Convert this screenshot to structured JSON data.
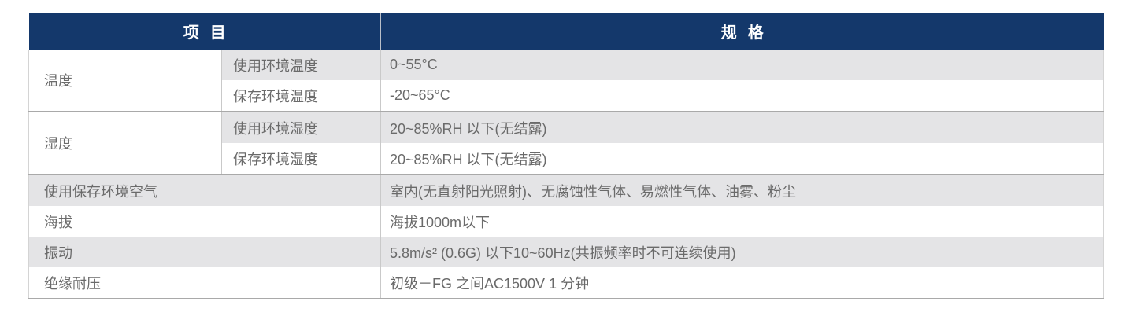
{
  "table": {
    "header": {
      "item_label": "项目",
      "spec_label": "规格"
    },
    "rows": [
      {
        "item": "温度",
        "sub": "使用环境温度",
        "spec": "0~55°C"
      },
      {
        "item": "",
        "sub": "保存环境温度",
        "spec": "-20~65°C"
      },
      {
        "item": "湿度",
        "sub": "使用环境湿度",
        "spec": "20~85%RH 以下(无结露)"
      },
      {
        "item": "",
        "sub": "保存环境湿度",
        "spec": "20~85%RH 以下(无结露)"
      },
      {
        "item": "使用保存环境空气",
        "sub": "",
        "spec": "室内(无直射阳光照射)、无腐蚀性气体、易燃性气体、油雾、粉尘"
      },
      {
        "item": "海拔",
        "sub": "",
        "spec": "海拔1000m以下"
      },
      {
        "item": "振动",
        "sub": "",
        "spec": "5.8m/s² (0.6G) 以下10~60Hz(共振频率时不可连续使用)"
      },
      {
        "item": "绝缘耐压",
        "sub": "",
        "spec": "初级－FG 之间AC1500V 1 分钟"
      }
    ],
    "colors": {
      "header_bg": "#14386b",
      "header_text": "#ffffff",
      "stripe_bg": "#e4e4e6",
      "row_bg": "#ffffff",
      "cell_divider": "#c9c9c9",
      "group_line": "#a9a9a9",
      "body_text": "#6a6a6a"
    }
  }
}
